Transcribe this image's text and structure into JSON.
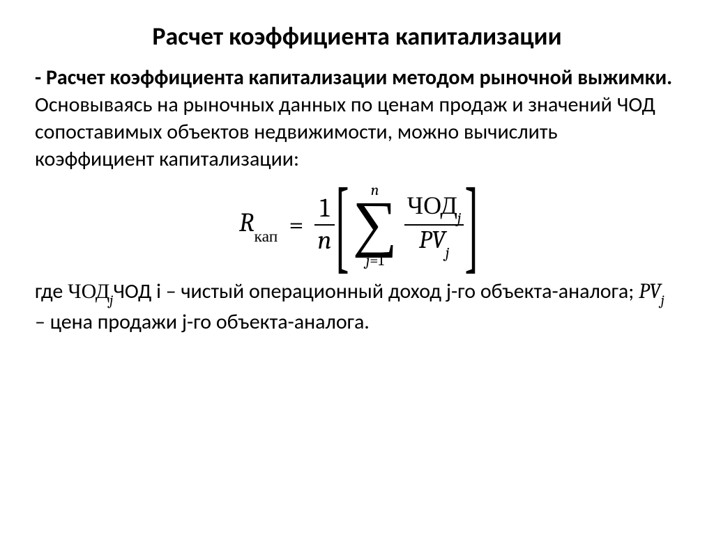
{
  "title": "Расчет коэффициента капитализации",
  "p1_bold": "- Расчет коэффициента капитализации методом рыночной выжимки.",
  "p1_rest": " Основываясь на рыночных данных по ценам продаж и значений ЧОД сопоставимых объектов недвижимости, можно вычислить коэффициент капитализации:",
  "formula": {
    "lhs_var": "R",
    "lhs_sub": "кап",
    "eq": "=",
    "frac1_num": "1",
    "frac1_den": "n",
    "lbracket": "[",
    "rbracket": "]",
    "sum_top": "n",
    "sum_symbol": "∑",
    "sum_bot_j": "j",
    "sum_bot_eq": "=1",
    "frac2_num_text": "ЧОД",
    "frac2_num_sub": "j",
    "frac2_den_var": "PV",
    "frac2_den_sub": "j"
  },
  "p2_pre": "где ",
  "p2_chod_roman": "ЧОД",
  "p2_chod_sub": "j",
  "p2_chod_plain": "ЧОД i – чистый операционный доход j-го объекта-аналога; ",
  "p2_pv_var": "PV",
  "p2_pv_sub": "j",
  "p2_tail": " – цена продажи j-го объекта-аналога.",
  "style": {
    "title_fontsize_pt": 27,
    "body_fontsize_pt": 22,
    "formula_fontsize_pt": 28,
    "text_color": "#000000",
    "background_color": "#ffffff",
    "font_family_body": "Calibri",
    "font_family_math": "Cambria Math",
    "title_weight": 700,
    "bold_weight": 700
  }
}
